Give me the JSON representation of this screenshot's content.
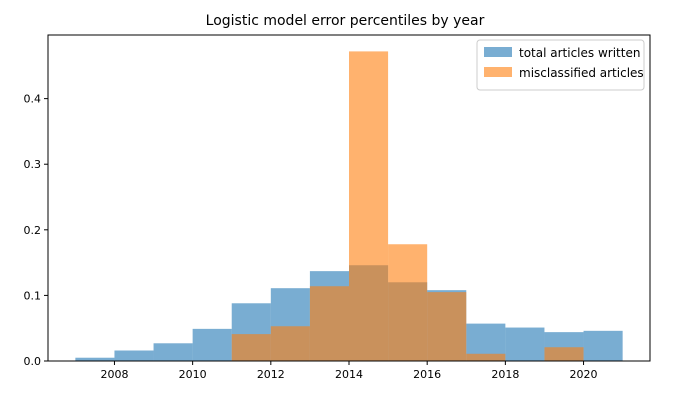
{
  "chart_data": {
    "type": "histogram",
    "title": "Logistic model error percentiles by year",
    "xlabel": "",
    "ylabel": "",
    "xlim": [
      2006.3,
      2021.7
    ],
    "ylim": [
      0,
      0.497
    ],
    "xticks": [
      2008,
      2010,
      2012,
      2014,
      2016,
      2018,
      2020
    ],
    "yticks": [
      0.0,
      0.1,
      0.2,
      0.3,
      0.4
    ],
    "bin_edges": [
      2007,
      2008,
      2009,
      2010,
      2011,
      2012,
      2013,
      2014,
      2015,
      2016,
      2017,
      2018,
      2019,
      2020,
      2021
    ],
    "legend_position": "top-right",
    "series": [
      {
        "name": "total articles written",
        "color": "#1f77b4",
        "alpha": 0.6,
        "values": [
          0.005,
          0.016,
          0.027,
          0.049,
          0.088,
          0.111,
          0.137,
          0.146,
          0.12,
          0.108,
          0.057,
          0.051,
          0.044,
          0.046
        ]
      },
      {
        "name": "misclassified articles",
        "color": "#ff7f0e",
        "alpha": 0.6,
        "values": [
          0,
          0,
          0,
          0,
          0.041,
          0.053,
          0.114,
          0.472,
          0.178,
          0.105,
          0.011,
          0,
          0.021,
          0
        ]
      }
    ]
  }
}
